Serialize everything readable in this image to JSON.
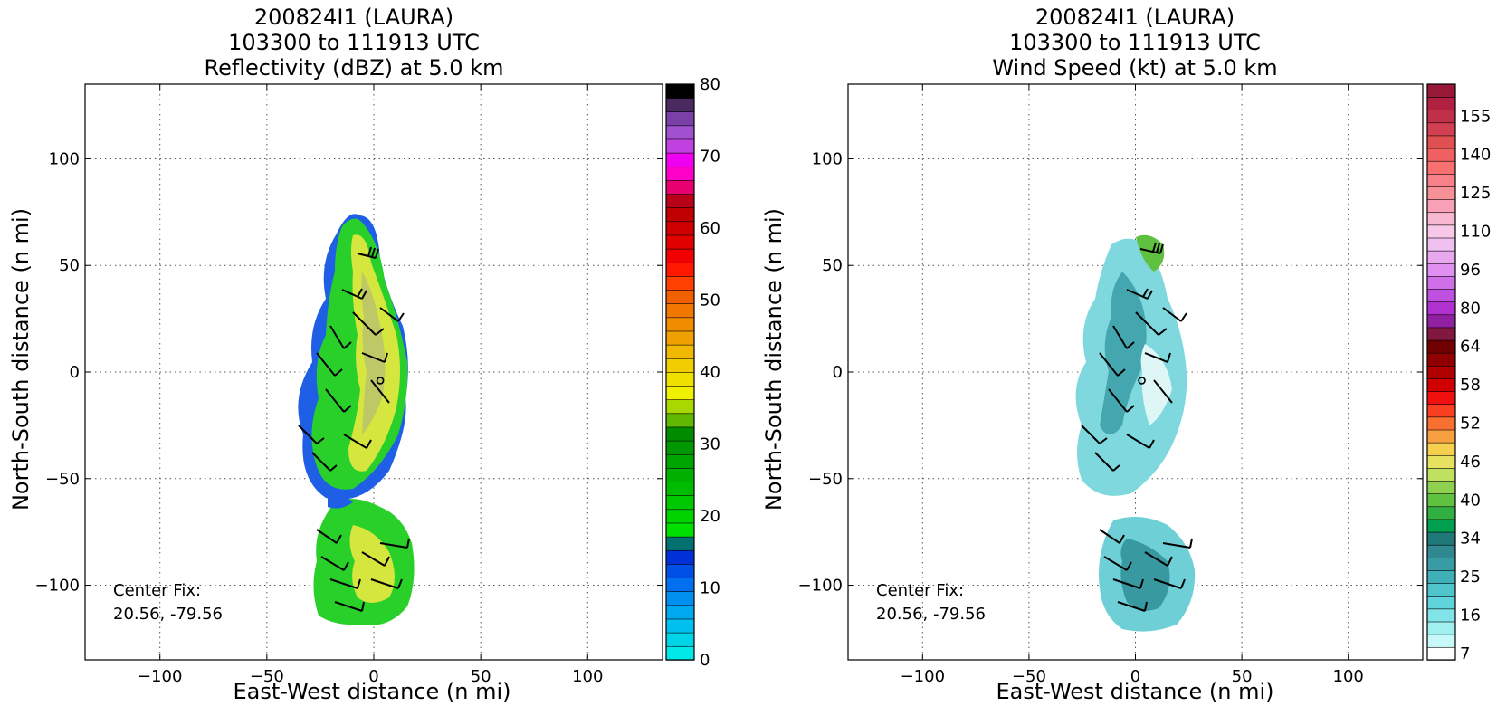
{
  "chart_data": [
    {
      "type": "heatmap",
      "title": [
        "200824I1 (LAURA)",
        "103300 to 111913 UTC",
        "Reflectivity (dBZ) at 5.0 km"
      ],
      "xlabel": "East-West distance (n mi)",
      "ylabel": "North-South distance (n mi)",
      "xlim": [
        -135,
        135
      ],
      "ylim": [
        -135,
        135
      ],
      "xticks": [
        -100,
        -50,
        0,
        50,
        100
      ],
      "yticks": [
        100,
        50,
        0,
        -50,
        -100
      ],
      "xtick_labels": [
        "−100",
        "−50",
        "0",
        "50",
        "100"
      ],
      "ytick_labels": [
        "100",
        "50",
        "0",
        "−50",
        "−100"
      ],
      "grid": true,
      "annotation": [
        "Center Fix:",
        "20.56, -79.56"
      ],
      "center_marker": [
        3,
        -4
      ],
      "colorbar": {
        "min": 0,
        "max": 80,
        "ticks": [
          0,
          10,
          20,
          30,
          40,
          50,
          60,
          70,
          80
        ],
        "colors": [
          "#00e8e8",
          "#00d4e8",
          "#00c0f0",
          "#00a8f0",
          "#0090f0",
          "#0070f0",
          "#0050e8",
          "#0030d8",
          "#007070",
          "#00e000",
          "#00d400",
          "#00c800",
          "#00bc00",
          "#00b000",
          "#00a400",
          "#009800",
          "#008c00",
          "#60b800",
          "#a8d800",
          "#f0f000",
          "#f0e000",
          "#f0cc00",
          "#f0b800",
          "#f0a000",
          "#f08c00",
          "#f07800",
          "#f06000",
          "#ff4000",
          "#ff1800",
          "#f00000",
          "#e00000",
          "#d00000",
          "#c00000",
          "#b80018",
          "#e80070",
          "#ff00c8",
          "#f000f0",
          "#c040e0",
          "#a050d0",
          "#7a40a8",
          "#4a2860",
          "#000000"
        ]
      }
    },
    {
      "type": "heatmap",
      "title": [
        "200824I1 (LAURA)",
        "103300 to 111913 UTC",
        "Wind Speed (kt) at 5.0 km"
      ],
      "xlabel": "East-West distance (n mi)",
      "ylabel": "North-South distance (n mi)",
      "xlim": [
        -135,
        135
      ],
      "ylim": [
        -135,
        135
      ],
      "xticks": [
        -100,
        -50,
        0,
        50,
        100
      ],
      "yticks": [
        100,
        50,
        0,
        -50,
        -100
      ],
      "xtick_labels": [
        "−100",
        "−50",
        "0",
        "50",
        "100"
      ],
      "ytick_labels": [
        "100",
        "50",
        "0",
        "−50",
        "−100"
      ],
      "grid": true,
      "annotation": [
        "Center Fix:",
        "20.56, -79.56"
      ],
      "center_marker": [
        3,
        -4
      ],
      "colorbar": {
        "tick_labels": [
          "7",
          "16",
          "25",
          "34",
          "40",
          "46",
          "52",
          "58",
          "64",
          "80",
          "96",
          "110",
          "125",
          "140",
          "155"
        ],
        "colors": [
          "#ffffff",
          "#c8f8f8",
          "#a0f0f0",
          "#80e4e8",
          "#60d4dc",
          "#50c4cc",
          "#40b0b8",
          "#389ca4",
          "#308890",
          "#207878",
          "#00a050",
          "#30b040",
          "#60c040",
          "#90d050",
          "#c0e060",
          "#e8e060",
          "#f8d050",
          "#f8a040",
          "#f87030",
          "#f84020",
          "#f01010",
          "#d00000",
          "#b00000",
          "#900000",
          "#700000",
          "#801840",
          "#9020a0",
          "#b030d0",
          "#c050e0",
          "#d070e8",
          "#e090f0",
          "#e8a8f0",
          "#f0c0f0",
          "#f8c8e8",
          "#f8b8d0",
          "#f8a0b8",
          "#f89098",
          "#f88088",
          "#f87070",
          "#f06060",
          "#e05050",
          "#d04050",
          "#c03048",
          "#b02040",
          "#981838"
        ]
      }
    }
  ]
}
